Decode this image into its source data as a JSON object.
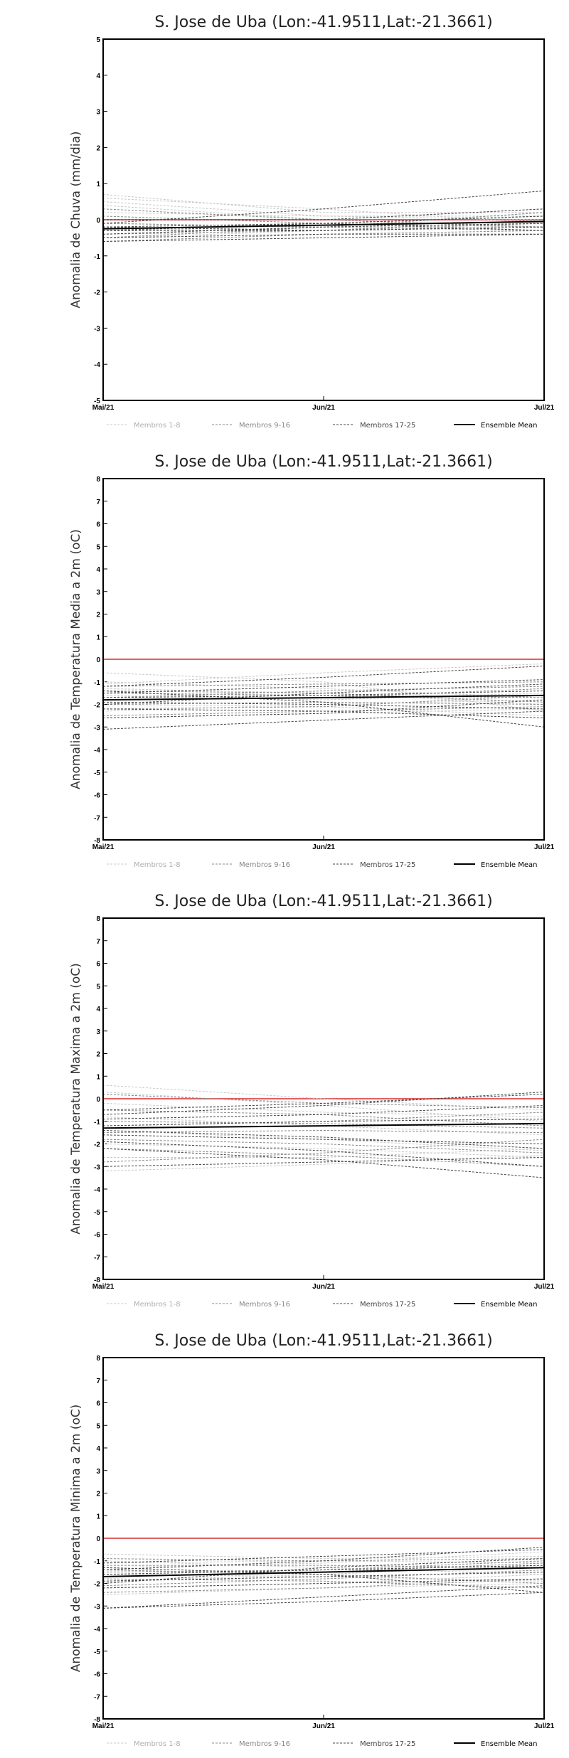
{
  "legend": {
    "items": [
      {
        "label": "Membros 1-8",
        "color": "#c8c8c8",
        "dash": "3,2",
        "width": 1
      },
      {
        "label": "Membros 9-16",
        "color": "#888888",
        "dash": "3,2",
        "width": 1
      },
      {
        "label": "Membros 17-25",
        "color": "#444444",
        "dash": "3,2",
        "width": 1
      },
      {
        "label": "Ensemble Mean",
        "color": "#000000",
        "dash": "",
        "width": 2
      }
    ]
  },
  "colors": {
    "zero_line": "#e06060",
    "frame": "#000000"
  },
  "chart_data": [
    {
      "type": "line",
      "title": "S. Jose de Uba (Lon:-41.9511,Lat:-21.3661)",
      "ylabel": "Anomalia de Chuva (mm/dia)",
      "xlabel": "",
      "categories": [
        "Mai/21",
        "Jun/21",
        "Jul/21"
      ],
      "ylim": [
        -5,
        5
      ],
      "yticks": [
        -5,
        -4,
        -3,
        -2,
        -1,
        0,
        1,
        2,
        3,
        4,
        5
      ],
      "grid": false,
      "legend_position": "bottom",
      "series": [
        {
          "group": "Membros 1-8",
          "values": [
            0.7,
            0.2,
            0.2
          ]
        },
        {
          "group": "Membros 1-8",
          "values": [
            0.6,
            0.3,
            -0.1
          ]
        },
        {
          "group": "Membros 1-8",
          "values": [
            0.5,
            0.1,
            0.1
          ]
        },
        {
          "group": "Membros 1-8",
          "values": [
            0.4,
            0.0,
            0.3
          ]
        },
        {
          "group": "Membros 1-8",
          "values": [
            0.2,
            0.1,
            0.0
          ]
        },
        {
          "group": "Membros 1-8",
          "values": [
            -0.1,
            -0.2,
            0.2
          ]
        },
        {
          "group": "Membros 1-8",
          "values": [
            -0.3,
            -0.2,
            -0.1
          ]
        },
        {
          "group": "Membros 1-8",
          "values": [
            -0.5,
            -0.3,
            0.0
          ]
        },
        {
          "group": "Membros 9-16",
          "values": [
            0.3,
            0.0,
            -0.2
          ]
        },
        {
          "group": "Membros 9-16",
          "values": [
            0.1,
            -0.1,
            0.1
          ]
        },
        {
          "group": "Membros 9-16",
          "values": [
            -0.1,
            -0.2,
            -0.3
          ]
        },
        {
          "group": "Membros 9-16",
          "values": [
            -0.2,
            -0.3,
            0.0
          ]
        },
        {
          "group": "Membros 9-16",
          "values": [
            -0.3,
            -0.1,
            -0.2
          ]
        },
        {
          "group": "Membros 9-16",
          "values": [
            -0.4,
            -0.3,
            -0.1
          ]
        },
        {
          "group": "Membros 9-16",
          "values": [
            -0.5,
            -0.2,
            0.2
          ]
        },
        {
          "group": "Membros 9-16",
          "values": [
            -0.6,
            -0.4,
            -0.3
          ]
        },
        {
          "group": "Membros 17-25",
          "values": [
            -0.1,
            0.3,
            0.8
          ]
        },
        {
          "group": "Membros 17-25",
          "values": [
            0.0,
            0.0,
            0.3
          ]
        },
        {
          "group": "Membros 17-25",
          "values": [
            -0.2,
            -0.1,
            0.1
          ]
        },
        {
          "group": "Membros 17-25",
          "values": [
            -0.3,
            -0.3,
            -0.2
          ]
        },
        {
          "group": "Membros 17-25",
          "values": [
            -0.4,
            -0.2,
            -0.1
          ]
        },
        {
          "group": "Membros 17-25",
          "values": [
            -0.5,
            -0.4,
            -0.4
          ]
        },
        {
          "group": "Membros 17-25",
          "values": [
            -0.3,
            -0.1,
            -0.3
          ]
        },
        {
          "group": "Membros 17-25",
          "values": [
            -0.2,
            -0.3,
            -0.2
          ]
        },
        {
          "group": "Membros 17-25",
          "values": [
            -0.6,
            -0.5,
            -0.4
          ]
        },
        {
          "group": "Ensemble Mean",
          "values": [
            -0.25,
            -0.15,
            -0.05
          ]
        }
      ]
    },
    {
      "type": "line",
      "title": "S. Jose de Uba (Lon:-41.9511,Lat:-21.3661)",
      "ylabel": "Anomalia de Temperatura Media a 2m (oC)",
      "xlabel": "",
      "categories": [
        "Mai/21",
        "Jun/21",
        "Jul/21"
      ],
      "ylim": [
        -8,
        8
      ],
      "yticks": [
        -8,
        -7,
        -6,
        -5,
        -4,
        -3,
        -2,
        -1,
        0,
        1,
        2,
        3,
        4,
        5,
        6,
        7,
        8
      ],
      "grid": false,
      "legend_position": "bottom",
      "series": [
        {
          "group": "Membros 1-8",
          "values": [
            -0.6,
            -1.0,
            -2.3
          ]
        },
        {
          "group": "Membros 1-8",
          "values": [
            -1.0,
            -1.3,
            -1.7
          ]
        },
        {
          "group": "Membros 1-8",
          "values": [
            -1.3,
            -1.5,
            -2.0
          ]
        },
        {
          "group": "Membros 1-8",
          "values": [
            -1.6,
            -1.8,
            -1.5
          ]
        },
        {
          "group": "Membros 1-8",
          "values": [
            -2.0,
            -2.1,
            -2.5
          ]
        },
        {
          "group": "Membros 1-8",
          "values": [
            -2.3,
            -2.0,
            -1.8
          ]
        },
        {
          "group": "Membros 1-8",
          "values": [
            -2.6,
            -2.4,
            -2.2
          ]
        },
        {
          "group": "Membros 1-8",
          "values": [
            -1.1,
            -0.6,
            -0.2
          ]
        },
        {
          "group": "Membros 9-16",
          "values": [
            -1.2,
            -1.1,
            -1.0
          ]
        },
        {
          "group": "Membros 9-16",
          "values": [
            -1.5,
            -1.6,
            -1.7
          ]
        },
        {
          "group": "Membros 9-16",
          "values": [
            -1.8,
            -1.7,
            -1.3
          ]
        },
        {
          "group": "Membros 9-16",
          "values": [
            -2.0,
            -1.9,
            -2.0
          ]
        },
        {
          "group": "Membros 9-16",
          "values": [
            -2.2,
            -2.1,
            -1.6
          ]
        },
        {
          "group": "Membros 9-16",
          "values": [
            -1.4,
            -1.5,
            -1.9
          ]
        },
        {
          "group": "Membros 9-16",
          "values": [
            -2.5,
            -2.3,
            -2.1
          ]
        },
        {
          "group": "Membros 9-16",
          "values": [
            -1.7,
            -1.4,
            -1.2
          ]
        },
        {
          "group": "Membros 17-25",
          "values": [
            -1.2,
            -0.8,
            -0.3
          ]
        },
        {
          "group": "Membros 17-25",
          "values": [
            -1.5,
            -1.2,
            -0.9
          ]
        },
        {
          "group": "Membros 17-25",
          "values": [
            -1.7,
            -1.6,
            -1.4
          ]
        },
        {
          "group": "Membros 17-25",
          "values": [
            -1.9,
            -2.0,
            -2.2
          ]
        },
        {
          "group": "Membros 17-25",
          "values": [
            -2.2,
            -2.3,
            -2.6
          ]
        },
        {
          "group": "Membros 17-25",
          "values": [
            -2.6,
            -2.4,
            -1.8
          ]
        },
        {
          "group": "Membros 17-25",
          "values": [
            -3.1,
            -2.7,
            -2.3
          ]
        },
        {
          "group": "Membros 17-25",
          "values": [
            -1.4,
            -1.9,
            -3.0
          ]
        },
        {
          "group": "Membros 17-25",
          "values": [
            -2.0,
            -1.5,
            -1.1
          ]
        },
        {
          "group": "Ensemble Mean",
          "values": [
            -1.8,
            -1.7,
            -1.6
          ]
        }
      ]
    },
    {
      "type": "line",
      "title": "S. Jose de Uba (Lon:-41.9511,Lat:-21.3661)",
      "ylabel": "Anomalia de Temperatura Maxima a 2m (oC)",
      "xlabel": "",
      "categories": [
        "Mai/21",
        "Jun/21",
        "Jul/21"
      ],
      "ylim": [
        -8,
        8
      ],
      "yticks": [
        -8,
        -7,
        -6,
        -5,
        -4,
        -3,
        -2,
        -1,
        0,
        1,
        2,
        3,
        4,
        5,
        6,
        7,
        8
      ],
      "grid": false,
      "legend_position": "bottom",
      "series": [
        {
          "group": "Membros 1-8",
          "values": [
            0.6,
            0.0,
            -0.5
          ]
        },
        {
          "group": "Membros 1-8",
          "values": [
            0.3,
            -0.3,
            -1.0
          ]
        },
        {
          "group": "Membros 1-8",
          "values": [
            -0.2,
            -0.6,
            -0.8
          ]
        },
        {
          "group": "Membros 1-8",
          "values": [
            -0.8,
            -1.2,
            -1.6
          ]
        },
        {
          "group": "Membros 1-8",
          "values": [
            -1.4,
            -1.8,
            -2.3
          ]
        },
        {
          "group": "Membros 1-8",
          "values": [
            -2.0,
            -2.2,
            -2.6
          ]
        },
        {
          "group": "Membros 1-8",
          "values": [
            -2.6,
            -2.6,
            -2.2
          ]
        },
        {
          "group": "Membros 1-8",
          "values": [
            -3.2,
            -2.9,
            -2.5
          ]
        },
        {
          "group": "Membros 9-16",
          "values": [
            0.2,
            -0.2,
            -0.4
          ]
        },
        {
          "group": "Membros 9-16",
          "values": [
            -0.5,
            -0.7,
            -1.2
          ]
        },
        {
          "group": "Membros 9-16",
          "values": [
            -1.0,
            -1.1,
            -1.3
          ]
        },
        {
          "group": "Membros 9-16",
          "values": [
            -1.5,
            -1.4,
            -1.5
          ]
        },
        {
          "group": "Membros 9-16",
          "values": [
            -1.8,
            -2.0,
            -2.4
          ]
        },
        {
          "group": "Membros 9-16",
          "values": [
            -2.2,
            -2.5,
            -3.0
          ]
        },
        {
          "group": "Membros 9-16",
          "values": [
            -2.8,
            -2.4,
            -1.8
          ]
        },
        {
          "group": "Membros 9-16",
          "values": [
            -1.2,
            -1.0,
            -0.6
          ]
        },
        {
          "group": "Membros 17-25",
          "values": [
            -0.5,
            -0.2,
            0.2
          ]
        },
        {
          "group": "Membros 17-25",
          "values": [
            -0.7,
            -0.3,
            0.3
          ]
        },
        {
          "group": "Membros 17-25",
          "values": [
            -1.2,
            -1.0,
            -0.9
          ]
        },
        {
          "group": "Membros 17-25",
          "values": [
            -1.6,
            -1.8,
            -2.0
          ]
        },
        {
          "group": "Membros 17-25",
          "values": [
            -1.9,
            -2.3,
            -3.0
          ]
        },
        {
          "group": "Membros 17-25",
          "values": [
            -2.2,
            -2.7,
            -3.5
          ]
        },
        {
          "group": "Membros 17-25",
          "values": [
            -3.0,
            -2.8,
            -2.6
          ]
        },
        {
          "group": "Membros 17-25",
          "values": [
            -1.4,
            -1.7,
            -2.2
          ]
        },
        {
          "group": "Membros 17-25",
          "values": [
            -0.9,
            -0.7,
            -0.3
          ]
        },
        {
          "group": "Ensemble Mean",
          "values": [
            -1.3,
            -1.2,
            -1.1
          ]
        }
      ]
    },
    {
      "type": "line",
      "title": "S. Jose de Uba (Lon:-41.9511,Lat:-21.3661)",
      "ylabel": "Anomalia de Temperatura Minima a 2m (oC)",
      "xlabel": "",
      "categories": [
        "Mai/21",
        "Jun/21",
        "Jul/21"
      ],
      "ylim": [
        -8,
        8
      ],
      "yticks": [
        -8,
        -7,
        -6,
        -5,
        -4,
        -3,
        -2,
        -1,
        0,
        1,
        2,
        3,
        4,
        5,
        6,
        7,
        8
      ],
      "grid": false,
      "legend_position": "bottom",
      "series": [
        {
          "group": "Membros 1-8",
          "values": [
            -0.7,
            -0.9,
            -0.8
          ]
        },
        {
          "group": "Membros 1-8",
          "values": [
            -1.0,
            -1.3,
            -1.6
          ]
        },
        {
          "group": "Membros 1-8",
          "values": [
            -1.3,
            -1.1,
            -0.6
          ]
        },
        {
          "group": "Membros 1-8",
          "values": [
            -1.6,
            -1.7,
            -1.9
          ]
        },
        {
          "group": "Membros 1-8",
          "values": [
            -1.9,
            -1.6,
            -1.2
          ]
        },
        {
          "group": "Membros 1-8",
          "values": [
            -2.2,
            -2.0,
            -1.6
          ]
        },
        {
          "group": "Membros 1-8",
          "values": [
            -2.5,
            -2.2,
            -2.0
          ]
        },
        {
          "group": "Membros 1-8",
          "values": [
            -1.1,
            -1.0,
            -1.1
          ]
        },
        {
          "group": "Membros 9-16",
          "values": [
            -0.9,
            -1.0,
            -0.9
          ]
        },
        {
          "group": "Membros 9-16",
          "values": [
            -1.2,
            -1.2,
            -1.3
          ]
        },
        {
          "group": "Membros 9-16",
          "values": [
            -1.5,
            -1.4,
            -1.0
          ]
        },
        {
          "group": "Membros 9-16",
          "values": [
            -1.8,
            -1.9,
            -2.2
          ]
        },
        {
          "group": "Membros 9-16",
          "values": [
            -2.1,
            -1.8,
            -1.4
          ]
        },
        {
          "group": "Membros 9-16",
          "values": [
            -2.4,
            -2.2,
            -1.8
          ]
        },
        {
          "group": "Membros 9-16",
          "values": [
            -1.4,
            -1.6,
            -2.0
          ]
        },
        {
          "group": "Membros 9-16",
          "values": [
            -1.7,
            -1.5,
            -1.1
          ]
        },
        {
          "group": "Membros 17-25",
          "values": [
            -1.1,
            -0.8,
            -0.5
          ]
        },
        {
          "group": "Membros 17-25",
          "values": [
            -1.4,
            -1.0,
            -0.4
          ]
        },
        {
          "group": "Membros 17-25",
          "values": [
            -1.6,
            -1.4,
            -1.2
          ]
        },
        {
          "group": "Membros 17-25",
          "values": [
            -1.9,
            -1.7,
            -1.5
          ]
        },
        {
          "group": "Membros 17-25",
          "values": [
            -2.2,
            -2.0,
            -1.8
          ]
        },
        {
          "group": "Membros 17-25",
          "values": [
            -3.1,
            -2.6,
            -2.1
          ]
        },
        {
          "group": "Membros 17-25",
          "values": [
            -3.1,
            -2.8,
            -2.4
          ]
        },
        {
          "group": "Membros 17-25",
          "values": [
            -1.3,
            -1.6,
            -2.4
          ]
        },
        {
          "group": "Membros 17-25",
          "values": [
            -2.0,
            -1.3,
            -0.9
          ]
        },
        {
          "group": "Ensemble Mean",
          "values": [
            -1.7,
            -1.5,
            -1.3
          ]
        }
      ]
    }
  ]
}
